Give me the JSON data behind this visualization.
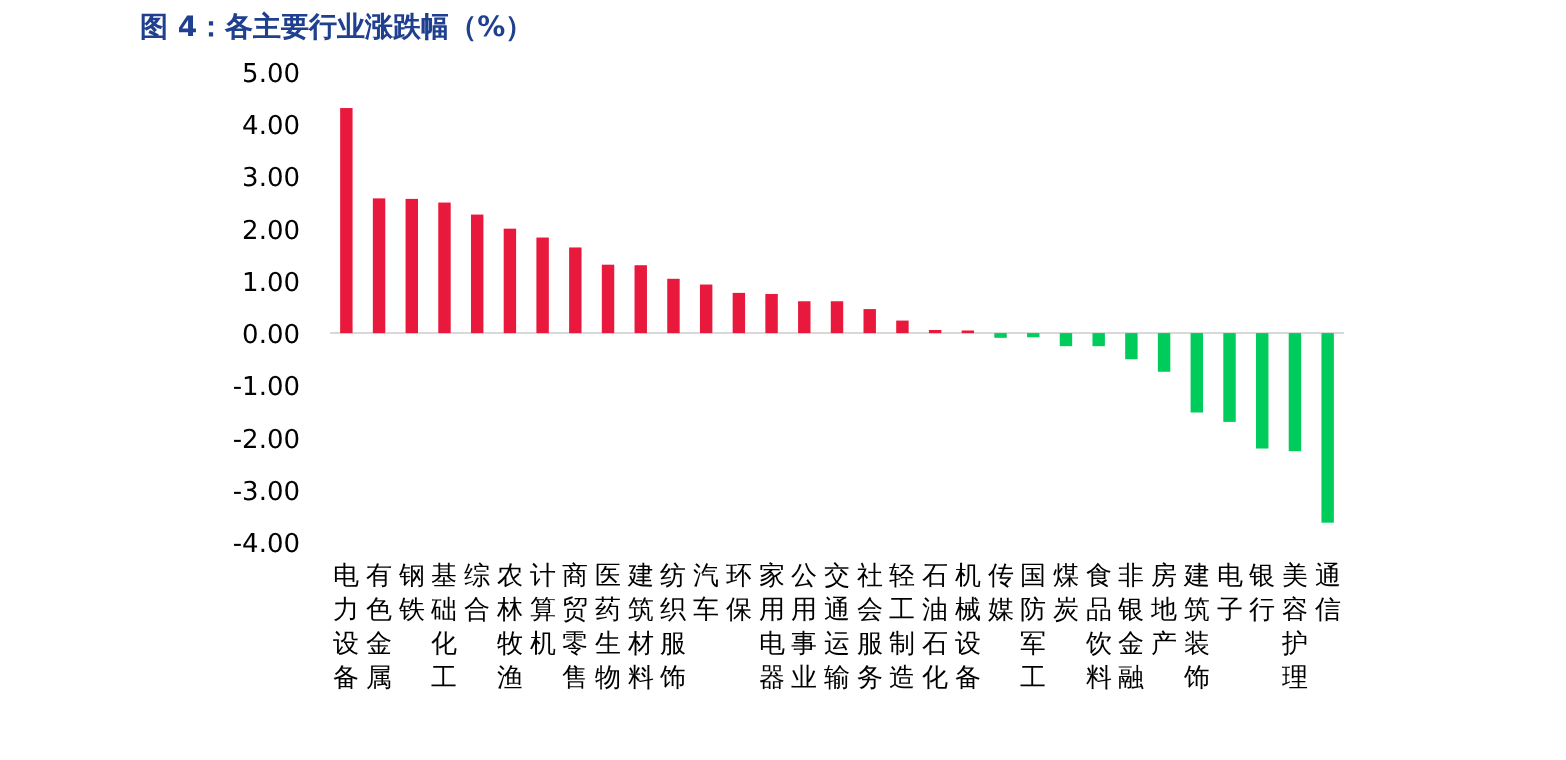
{
  "chart_data": {
    "type": "bar",
    "title": "图 4：各主要行业涨跌幅（%）",
    "categories": [
      "电力设备",
      "有色金属",
      "钢铁",
      "基础化工",
      "综合",
      "农林牧渔",
      "计算机",
      "商贸零售",
      "医药生物",
      "建筑材料",
      "纺织服饰",
      "汽车",
      "环保",
      "家用电器",
      "公用事业",
      "交通运输",
      "社会服务",
      "轻工制造",
      "石油石化",
      "机械设备",
      "传媒",
      "国防军工",
      "煤炭",
      "食品饮料",
      "非银金融",
      "房地产",
      "建筑装饰",
      "电子",
      "银行",
      "美容护理",
      "通信"
    ],
    "values": [
      4.31,
      2.58,
      2.57,
      2.5,
      2.27,
      2.0,
      1.83,
      1.64,
      1.31,
      1.3,
      1.04,
      0.93,
      0.77,
      0.75,
      0.61,
      0.61,
      0.46,
      0.24,
      0.06,
      0.05,
      -0.09,
      -0.08,
      -0.25,
      -0.25,
      -0.5,
      -0.74,
      -1.52,
      -1.7,
      -2.21,
      -2.26,
      -3.63
    ],
    "colors": [
      "#e8193c",
      "#e8193c",
      "#e8193c",
      "#e8193c",
      "#e8193c",
      "#e8193c",
      "#e8193c",
      "#e8193c",
      "#e8193c",
      "#e8193c",
      "#e8193c",
      "#e8193c",
      "#e8193c",
      "#e8193c",
      "#e8193c",
      "#e8193c",
      "#e8193c",
      "#e8193c",
      "#e8193c",
      "#e8193c",
      "#00cc5c",
      "#00cc5c",
      "#00cc5c",
      "#00cc5c",
      "#00cc5c",
      "#00cc5c",
      "#00cc5c",
      "#00cc5c",
      "#00cc5c",
      "#00cc5c",
      "#00cc5c"
    ],
    "ylim": [
      -4,
      5
    ],
    "yticks": [
      {
        "value": 5,
        "label": "5.00"
      },
      {
        "value": 4,
        "label": "4.00"
      },
      {
        "value": 3,
        "label": "3.00"
      },
      {
        "value": 2,
        "label": "2.00"
      },
      {
        "value": 1,
        "label": "1.00"
      },
      {
        "value": 0,
        "label": "0.00"
      },
      {
        "value": -1,
        "label": "-1.00"
      },
      {
        "value": -2,
        "label": "-2.00"
      },
      {
        "value": -3,
        "label": "-3.00"
      },
      {
        "value": -4,
        "label": "-4.00"
      }
    ]
  }
}
